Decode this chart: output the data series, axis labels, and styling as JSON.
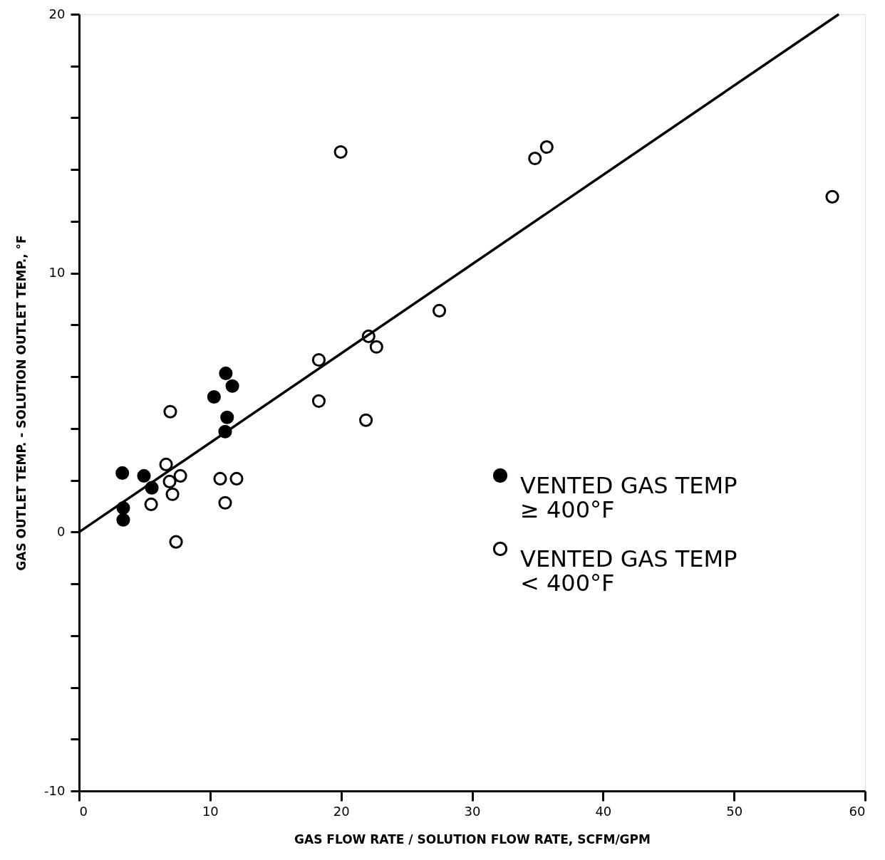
{
  "chart_data": {
    "type": "scatter",
    "xlabel": "GAS FLOW RATE / SOLUTION FLOW RATE, SCFM/GPM",
    "ylabel": "GAS OUTLET TEMP. - SOLUTION OUTLET TEMP., °F",
    "xlim": [
      0,
      60
    ],
    "xticks": [
      0,
      10,
      20,
      30,
      40,
      50,
      60
    ],
    "ylim": [
      -10,
      20
    ],
    "yticks": [
      -10,
      {
        "value": -8,
        "label": null
      },
      {
        "value": -6,
        "label": null
      },
      {
        "value": -4,
        "label": null
      },
      {
        "value": -2,
        "label": null
      },
      0,
      {
        "value": 2,
        "label": null
      },
      {
        "value": 4,
        "label": null
      },
      {
        "value": 6,
        "label": null
      },
      {
        "value": 8,
        "label": null
      },
      10,
      {
        "value": 12,
        "label": null
      },
      {
        "value": 14,
        "label": null
      },
      {
        "value": 16,
        "label": null
      },
      {
        "value": 18,
        "label": null
      },
      20
    ],
    "grid": false,
    "legend": "right",
    "marker": "circle",
    "series": [
      {
        "name": "VENTED GAS TEMP\n≥ 400°F",
        "color": "#000000",
        "x": [
          3.3,
          4.95,
          5.55,
          3.37,
          3.37,
          11.2,
          11.7,
          10.3,
          11.3,
          11.15
        ],
        "values": [
          2.28,
          2.17,
          1.71,
          0.93,
          0.47,
          6.13,
          5.64,
          5.22,
          4.43,
          3.88
        ]
      },
      {
        "name": "VENTED GAS TEMP\n< 400°F",
        "color": "#ffffff",
        "x": [
          6.96,
          6.64,
          7.73,
          6.91,
          7.13,
          5.5,
          7.4,
          10.77,
          12.02,
          11.15,
          19.97,
          34.8,
          35.7,
          27.5,
          22.1,
          22.7,
          18.3,
          18.3,
          21.9,
          57.5
        ],
        "values": [
          4.65,
          2.61,
          2.17,
          1.95,
          1.46,
          1.07,
          -0.38,
          2.06,
          2.06,
          1.13,
          14.68,
          14.43,
          14.87,
          8.55,
          7.56,
          7.15,
          6.65,
          5.06,
          4.32,
          12.95
        ]
      },
      {
        "type": "line",
        "color": "#000000",
        "line_style": "solid",
        "marker": "none",
        "x": [
          0,
          58.0
        ],
        "values": [
          0,
          20.0
        ]
      }
    ]
  }
}
